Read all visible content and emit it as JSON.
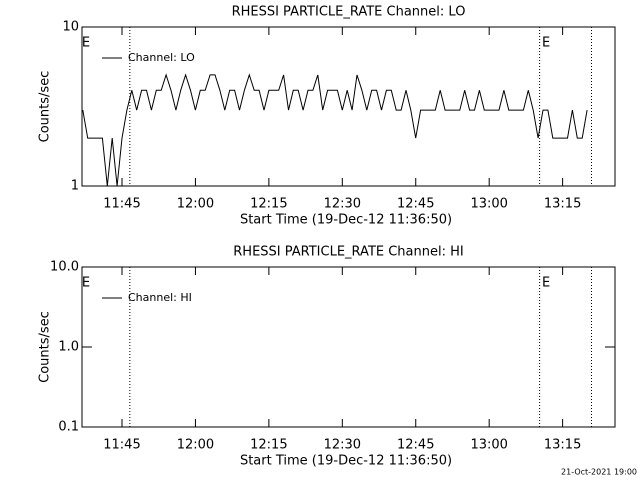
{
  "chart_data": [
    {
      "type": "line",
      "title": "RHESSI PARTICLE_RATE Channel: LO",
      "xlabel": "Start Time (19-Dec-12 11:36:50)",
      "ylabel": "Counts/sec",
      "log_y": true,
      "ylim": [
        1,
        10
      ],
      "yticks": [
        1,
        10
      ],
      "xlim": [
        696.83,
        805.7
      ],
      "xticks": [
        {
          "value": 705,
          "label": "11:45"
        },
        {
          "value": 720,
          "label": "12:00"
        },
        {
          "value": 735,
          "label": "12:15"
        },
        {
          "value": 750,
          "label": "12:30"
        },
        {
          "value": 765,
          "label": "12:45"
        },
        {
          "value": 780,
          "label": "13:00"
        },
        {
          "value": 795,
          "label": "13:15"
        }
      ],
      "vlines": [
        706.6,
        790.3,
        800.9
      ],
      "annotations": [
        {
          "x": 697,
          "text": "E"
        },
        {
          "x": 791,
          "text": "E"
        }
      ],
      "legend": "upper left",
      "x": [
        697,
        698,
        699,
        700,
        701,
        702,
        703,
        704,
        705,
        706,
        707,
        708,
        709,
        710,
        711,
        712,
        713,
        714,
        715,
        716,
        717,
        718,
        719,
        720,
        721,
        722,
        723,
        724,
        725,
        726,
        727,
        728,
        729,
        730,
        731,
        732,
        733,
        734,
        735,
        736,
        737,
        738,
        739,
        740,
        741,
        742,
        743,
        744,
        745,
        746,
        747,
        748,
        749,
        750,
        751,
        752,
        753,
        754,
        755,
        756,
        757,
        758,
        759,
        760,
        761,
        762,
        763,
        764,
        765,
        766,
        767,
        768,
        769,
        770,
        771,
        772,
        773,
        774,
        775,
        776,
        777,
        778,
        779,
        780,
        781,
        782,
        783,
        784,
        785,
        786,
        787,
        788,
        789,
        790,
        791,
        792,
        793,
        794,
        795,
        796,
        797,
        798,
        799,
        800
      ],
      "series": [
        {
          "name": "Channel: LO",
          "color": "#000000",
          "values": [
            3,
            2,
            2,
            2,
            2,
            1,
            2,
            1,
            2,
            3,
            4,
            3,
            4,
            4,
            3,
            4,
            4,
            5,
            4,
            3,
            4,
            5,
            4,
            3,
            4,
            4,
            5,
            5,
            4,
            3,
            4,
            4,
            3,
            4,
            5,
            4,
            4,
            3,
            4,
            4,
            4,
            5,
            3,
            4,
            4,
            3,
            4,
            4,
            5,
            3,
            4,
            4,
            4,
            3,
            4,
            3,
            5,
            4,
            3,
            4,
            4,
            3,
            4,
            4,
            3,
            3,
            4,
            3,
            2,
            3,
            3,
            3,
            3,
            4,
            3,
            3,
            3,
            3,
            4,
            3,
            3,
            4,
            3,
            3,
            3,
            3,
            4,
            3,
            3,
            3,
            3,
            4,
            3,
            2,
            3,
            3,
            2,
            2,
            2,
            2,
            3,
            2,
            2,
            3
          ]
        }
      ]
    },
    {
      "type": "line",
      "title": "RHESSI PARTICLE_RATE Channel: HI",
      "xlabel": "Start Time (19-Dec-12 11:36:50)",
      "ylabel": "Counts/sec",
      "log_y": true,
      "ylim": [
        0.1,
        10
      ],
      "yticks": [
        {
          "value": 0.1,
          "label": "0.1"
        },
        {
          "value": 1,
          "label": "1.0"
        },
        {
          "value": 10,
          "label": "10.0"
        }
      ],
      "xlim": [
        696.83,
        805.7
      ],
      "xticks": [
        {
          "value": 705,
          "label": "11:45"
        },
        {
          "value": 720,
          "label": "12:00"
        },
        {
          "value": 735,
          "label": "12:15"
        },
        {
          "value": 750,
          "label": "12:30"
        },
        {
          "value": 765,
          "label": "12:45"
        },
        {
          "value": 780,
          "label": "13:00"
        },
        {
          "value": 795,
          "label": "13:15"
        }
      ],
      "vlines": [
        706.6,
        790.3,
        800.9
      ],
      "annotations": [
        {
          "x": 697,
          "text": "E"
        },
        {
          "x": 791,
          "text": "E"
        }
      ],
      "legend": "upper left",
      "x": [],
      "series": [
        {
          "name": "Channel: HI",
          "color": "#000000",
          "values": []
        }
      ]
    }
  ],
  "footer": "21-Oct-2021 19:00"
}
